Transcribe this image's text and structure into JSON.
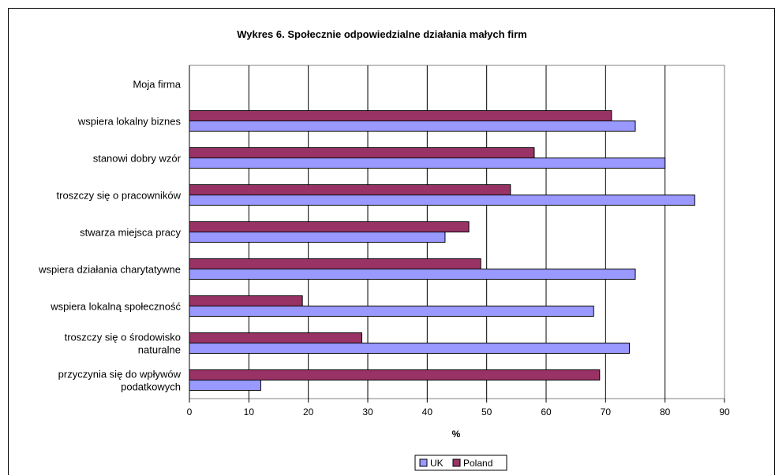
{
  "chart_data": {
    "type": "bar",
    "orientation": "horizontal",
    "title": "Wykres 6. Społecznie odpowiedzialne działania małych firm",
    "xlabel": "%",
    "ylabel": "",
    "xlim": [
      0,
      90
    ],
    "xticks": [
      0,
      10,
      20,
      30,
      40,
      50,
      60,
      70,
      80,
      90
    ],
    "grid": true,
    "legend_position": "bottom",
    "header_label": "Moja firma",
    "categories": [
      [
        "wspiera lokalny biznes"
      ],
      [
        "stanowi dobry wzór"
      ],
      [
        "troszczy się o pracowników"
      ],
      [
        "stwarza miejsca pracy"
      ],
      [
        "wspiera działania charytatywne"
      ],
      [
        "wspiera lokalną społeczność"
      ],
      [
        "troszczy się o środowisko",
        "naturalne"
      ],
      [
        "przyczynia się do wpływów",
        "podatkowych"
      ]
    ],
    "series": [
      {
        "name": "UK",
        "color": "#9999ff",
        "values": [
          75,
          80,
          85,
          43,
          75,
          68,
          74,
          12
        ]
      },
      {
        "name": "Poland",
        "color": "#993366",
        "values": [
          71,
          58,
          54,
          47,
          49,
          19,
          29,
          69
        ]
      }
    ]
  }
}
